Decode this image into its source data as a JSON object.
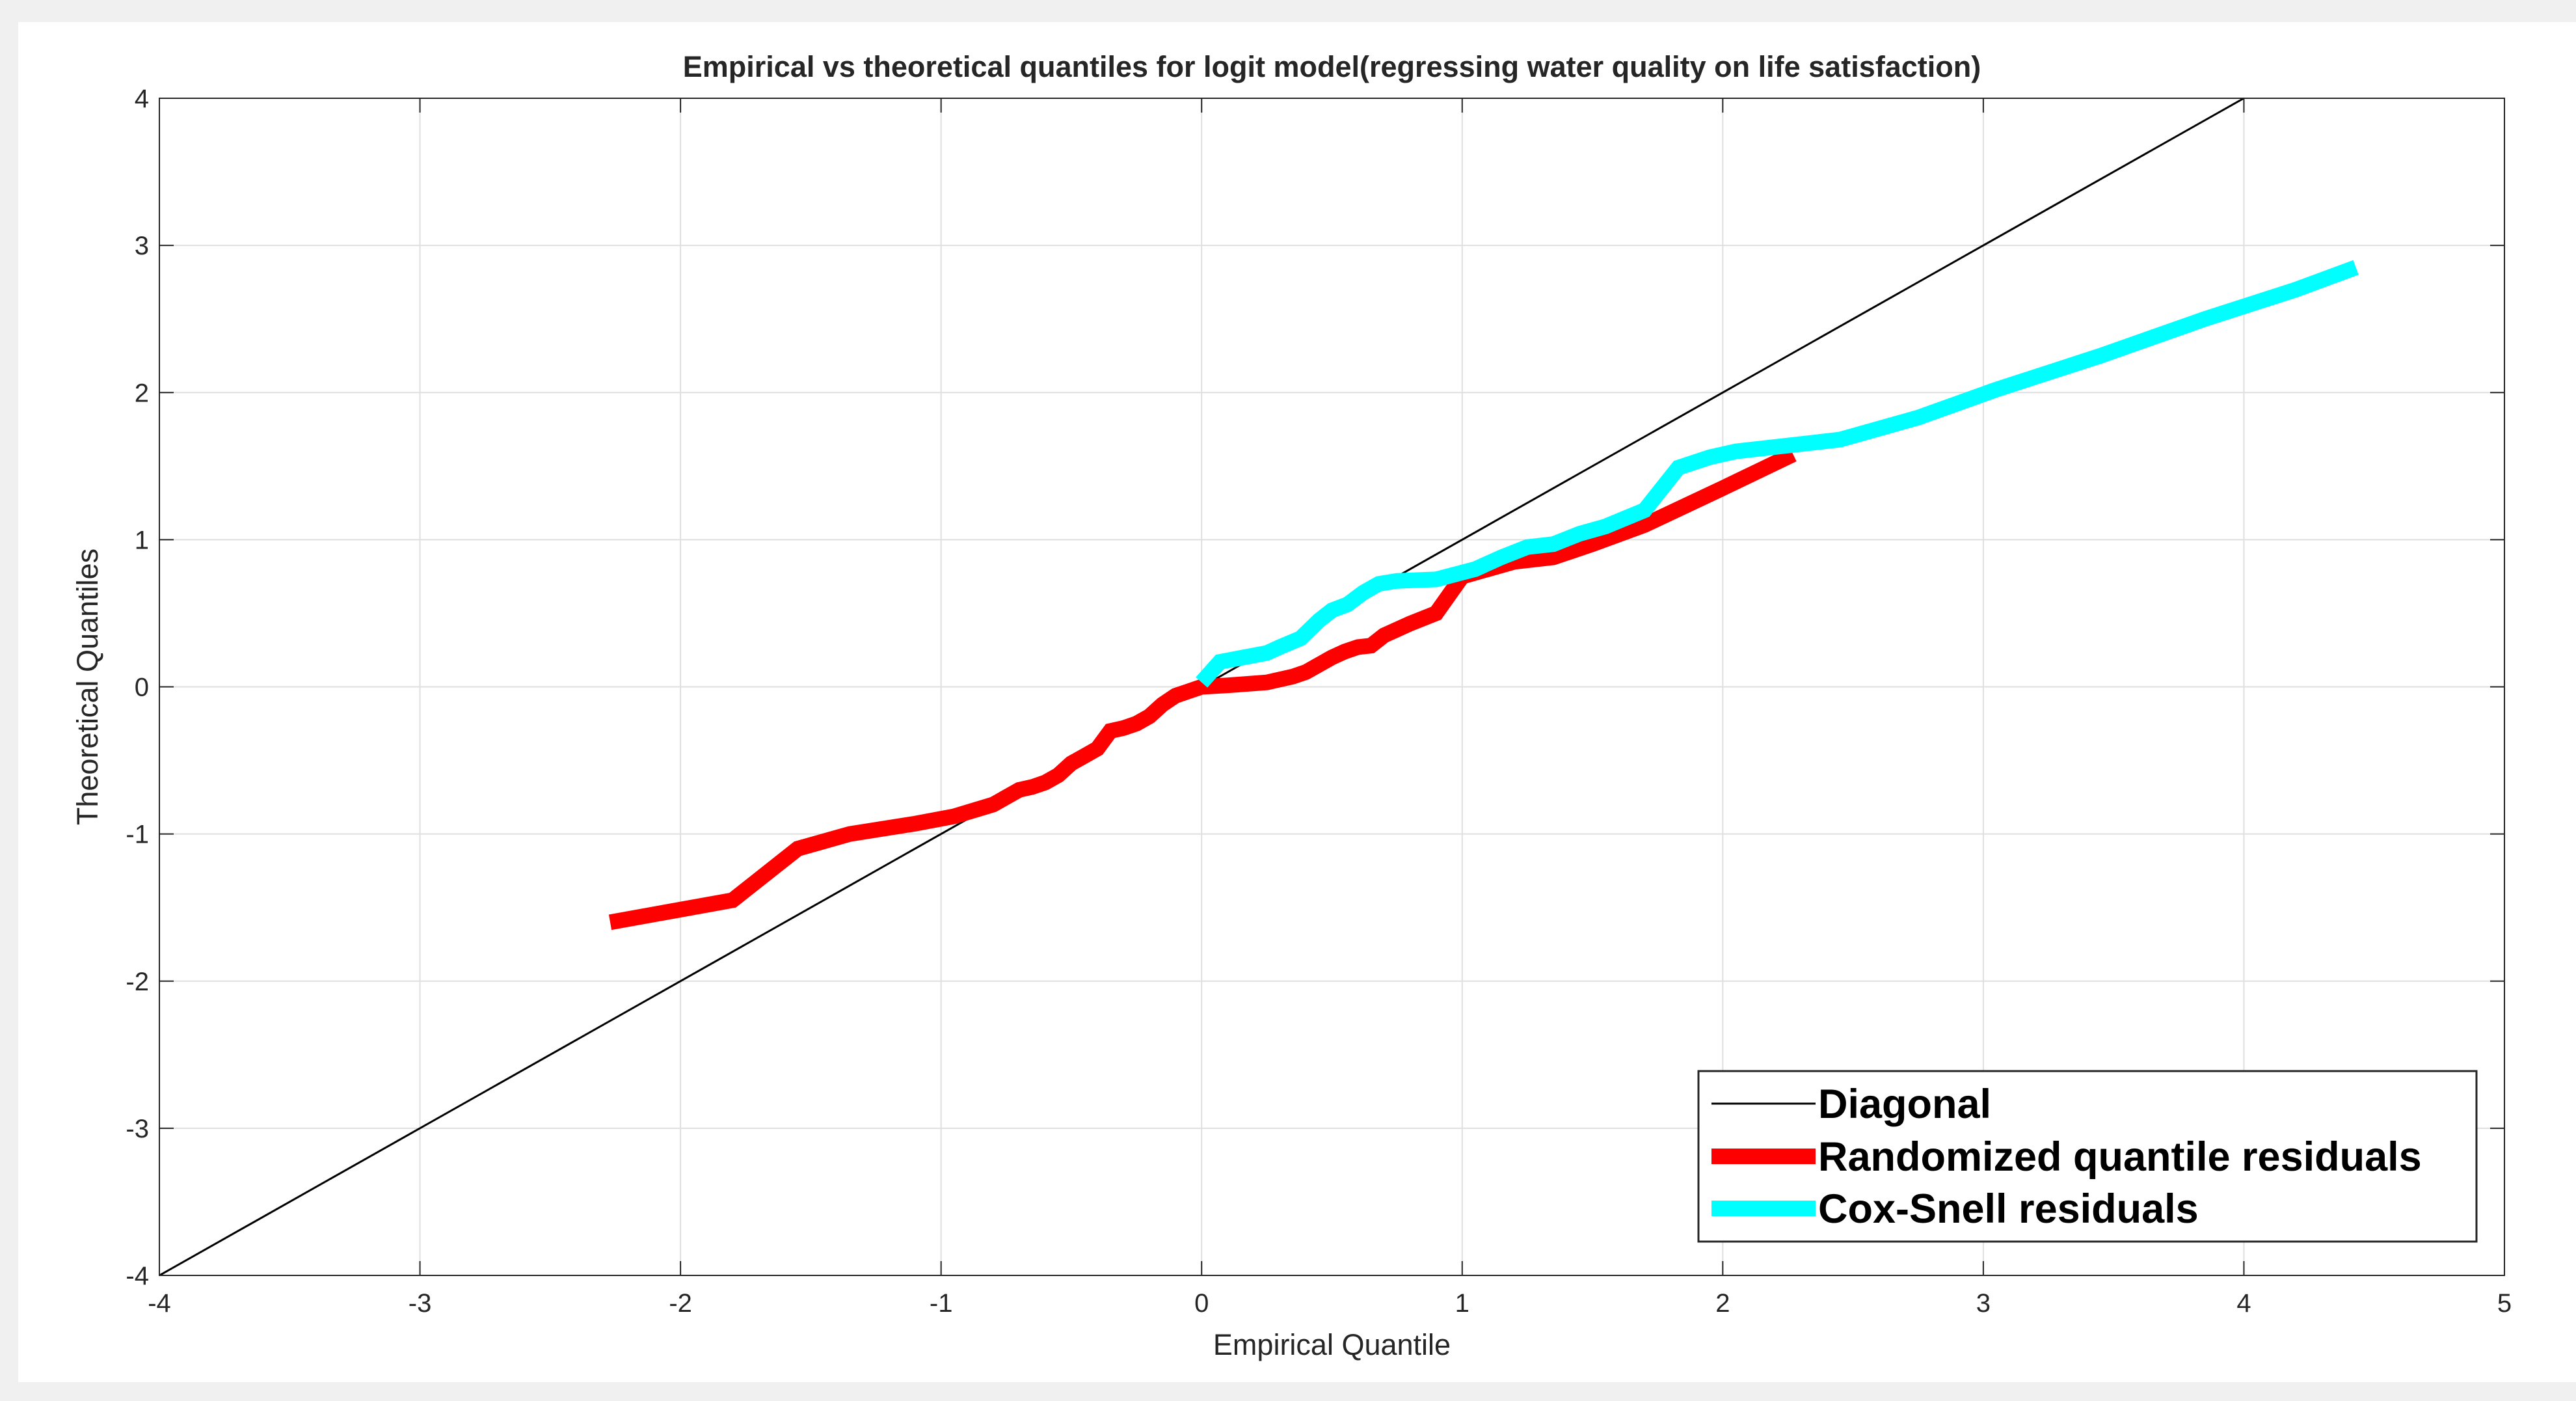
{
  "chart_data": {
    "type": "line",
    "title": "Empirical vs theoretical quantiles for logit model(regressing water quality on life satisfaction)",
    "xlabel": "Empirical Quantile",
    "ylabel": "Theoretical Quantiles",
    "xlim": [
      -4,
      5
    ],
    "ylim": [
      -4,
      4
    ],
    "x_ticks": [
      "-4",
      "-3",
      "-2",
      "-1",
      "0",
      "1",
      "2",
      "3",
      "4",
      "5"
    ],
    "y_ticks": [
      "-4",
      "-3",
      "-2",
      "-1",
      "0",
      "1",
      "2",
      "3",
      "4"
    ],
    "grid": true,
    "legend_position": "bottom-right",
    "series": [
      {
        "name": "Diagonal",
        "color": "#000000",
        "style": "thin",
        "x": [
          -4,
          4
        ],
        "y": [
          -4,
          4
        ]
      },
      {
        "name": "Randomized quantile residuals",
        "color": "#ff0000",
        "style": "thick",
        "x": [
          -2.27,
          -1.8,
          -1.55,
          -1.35,
          -1.1,
          -0.95,
          -0.8,
          -0.75,
          -0.7,
          -0.65,
          -0.6,
          -0.55,
          -0.5,
          -0.45,
          -0.4,
          -0.35,
          -0.3,
          -0.25,
          -0.2,
          -0.15,
          -0.1,
          -0.05,
          0.0,
          0.1,
          0.25,
          0.35,
          0.4,
          0.45,
          0.5,
          0.55,
          0.6,
          0.65,
          0.7,
          0.8,
          0.9,
          1.0,
          1.2,
          1.35,
          1.5,
          1.7,
          2.0,
          2.27
        ],
        "y": [
          -1.6,
          -1.45,
          -1.1,
          -1.0,
          -0.93,
          -0.88,
          -0.8,
          -0.75,
          -0.7,
          -0.68,
          -0.65,
          -0.6,
          -0.52,
          -0.47,
          -0.42,
          -0.3,
          -0.28,
          -0.25,
          -0.2,
          -0.12,
          -0.06,
          -0.03,
          0.0,
          0.01,
          0.03,
          0.07,
          0.1,
          0.15,
          0.2,
          0.24,
          0.27,
          0.28,
          0.35,
          0.43,
          0.5,
          0.75,
          0.85,
          0.88,
          0.97,
          1.1,
          1.35,
          1.58
        ]
      },
      {
        "name": "Cox-Snell residuals",
        "color": "#00ffff",
        "style": "thick",
        "x": [
          0.0,
          0.07,
          0.25,
          0.3,
          0.38,
          0.45,
          0.5,
          0.56,
          0.62,
          0.68,
          0.75,
          0.9,
          1.05,
          1.15,
          1.25,
          1.35,
          1.45,
          1.55,
          1.7,
          1.83,
          1.95,
          2.05,
          2.2,
          2.45,
          2.75,
          3.05,
          3.45,
          3.85,
          4.2,
          4.43
        ],
        "y": [
          0.03,
          0.17,
          0.23,
          0.27,
          0.33,
          0.45,
          0.52,
          0.56,
          0.64,
          0.7,
          0.72,
          0.73,
          0.8,
          0.88,
          0.95,
          0.97,
          1.04,
          1.09,
          1.2,
          1.49,
          1.56,
          1.6,
          1.63,
          1.68,
          1.83,
          2.02,
          2.25,
          2.5,
          2.7,
          2.85
        ]
      }
    ]
  },
  "legend": {
    "items": [
      {
        "label": "Diagonal",
        "color": "#000000"
      },
      {
        "label": "Randomized quantile residuals",
        "color": "#ff0000"
      },
      {
        "label": "Cox-Snell residuals",
        "color": "#00ffff"
      }
    ]
  }
}
